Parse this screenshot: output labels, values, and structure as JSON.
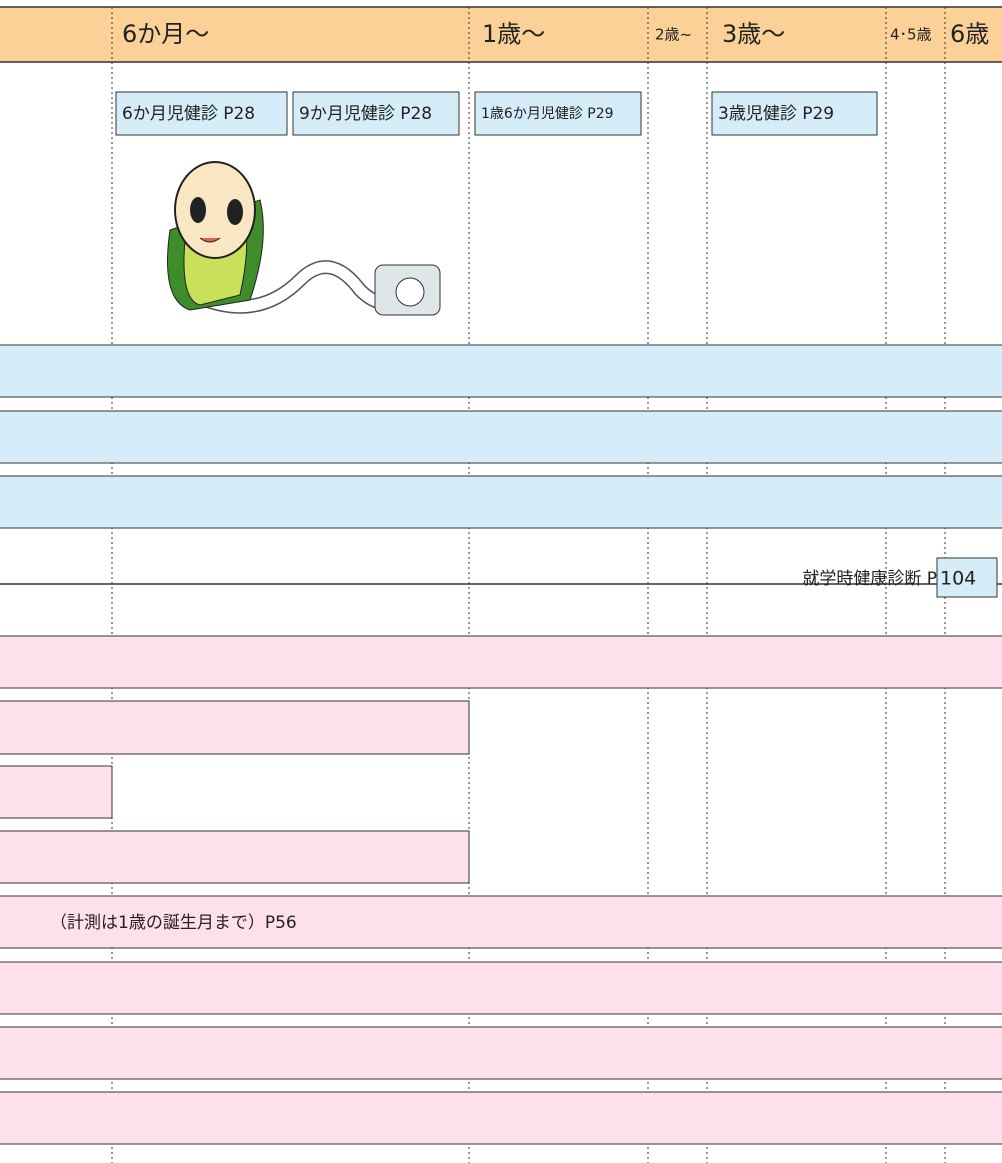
{
  "header": {
    "columns": [
      "6か月〜",
      "1歳〜",
      "2歳~",
      "3歳〜",
      "4･5歳",
      "6歳"
    ]
  },
  "checkups": [
    "6か月児健診 P28",
    "9か月児健診 P28",
    "1歳6か月児健診 P29",
    "3歳児健診 P29"
  ],
  "school_checkup": {
    "label": "就学時健康診断 P",
    "page": "104"
  },
  "measure_note": "（計測は1歳の誕生月まで）P56"
}
